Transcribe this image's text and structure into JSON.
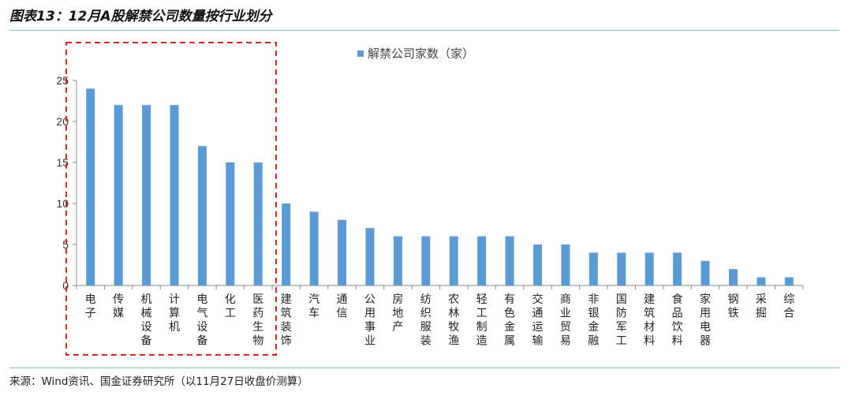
{
  "figure": {
    "title": "图表13：12月A股解禁公司数量按行业划分",
    "source": "来源：Wind资讯、国金证券研究所（以11月27日收盘价测算）"
  },
  "colors": {
    "bar": "#5b9bd5",
    "highlight_box": "#e0202a",
    "rule": "#7fbfd0",
    "axis": "#888888"
  },
  "chart_data": {
    "type": "bar",
    "legend": {
      "label": "解禁公司家数（家）",
      "position": "top-center"
    },
    "categories": [
      "电子",
      "传媒",
      "机械设备",
      "计算机",
      "电气设备",
      "化工",
      "医药生物",
      "建筑装饰",
      "汽车",
      "通信",
      "公用事业",
      "房地产",
      "纺织服装",
      "农林牧渔",
      "轻工制造",
      "有色金属",
      "交通运输",
      "商业贸易",
      "非银金融",
      "国防军工",
      "建筑材料",
      "食品饮料",
      "家用电器",
      "钢铁",
      "采掘",
      "综合"
    ],
    "values": [
      24,
      22,
      22,
      22,
      17,
      15,
      15,
      10,
      9,
      8,
      7,
      6,
      6,
      6,
      6,
      6,
      5,
      5,
      4,
      4,
      4,
      4,
      3,
      2,
      1,
      1
    ],
    "ylim": [
      0,
      25
    ],
    "yticks": [
      0,
      5,
      10,
      15,
      20,
      25
    ],
    "grid": false,
    "highlight_categories": [
      "电子",
      "传媒",
      "机械设备",
      "计算机",
      "电气设备",
      "化工",
      "医药生物"
    ]
  }
}
